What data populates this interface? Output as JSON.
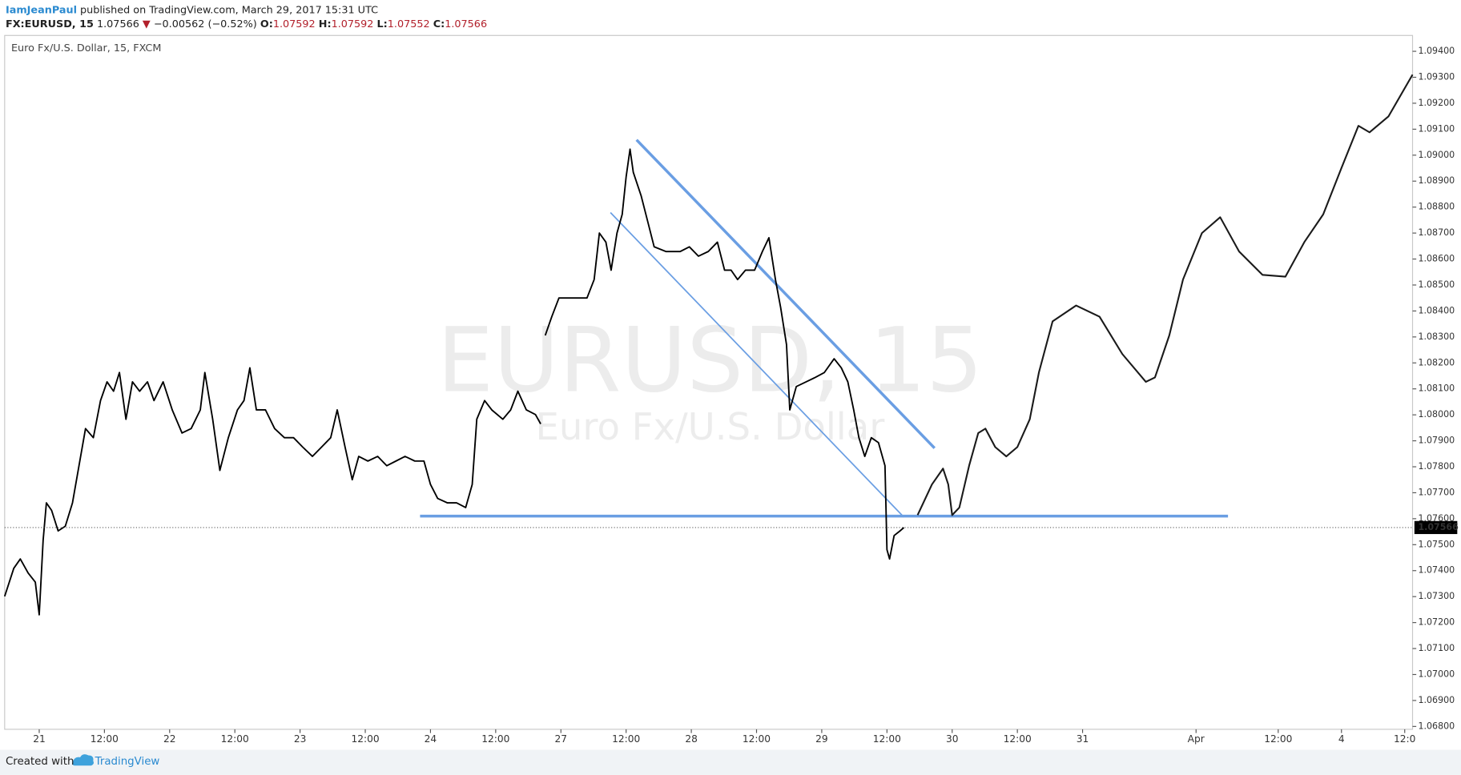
{
  "header": {
    "author": "IamJeanPaul",
    "published": "published on TradingView.com, March 29, 2017 15:31 UTC",
    "symbol": "FX:EURUSD, 15",
    "price": "1.07566",
    "arrow": "▼",
    "change": "−0.00562 (−0.52%)",
    "open_label": "O:",
    "open": "1.07592",
    "high_label": "H:",
    "high": "1.07592",
    "low_label": "L:",
    "low": "1.07552",
    "close_label": "C:",
    "close": "1.07566"
  },
  "footer": {
    "created": "Created with",
    "brand": "TradingView"
  },
  "chart_data": {
    "type": "line",
    "title": "Euro Fx/U.S. Dollar, 15, FXCM",
    "watermark": "EURUSD, 15",
    "watermark_subtitle": "Euro Fx/U.S. Dollar",
    "xlim": [
      -0.53,
      21.06
    ],
    "ylim": [
      1.06789,
      1.09461
    ],
    "xticks": [
      {
        "value": 0,
        "label": "21"
      },
      {
        "value": 1,
        "label": "12:00"
      },
      {
        "value": 2,
        "label": "22"
      },
      {
        "value": 3,
        "label": "12:00"
      },
      {
        "value": 4,
        "label": "23"
      },
      {
        "value": 5,
        "label": "12:00"
      },
      {
        "value": 6,
        "label": "24"
      },
      {
        "value": 7,
        "label": "12:00"
      },
      {
        "value": 8,
        "label": "27"
      },
      {
        "value": 9,
        "label": "12:00"
      },
      {
        "value": 10,
        "label": "28"
      },
      {
        "value": 11,
        "label": "12:00"
      },
      {
        "value": 12,
        "label": "29"
      },
      {
        "value": 13,
        "label": "12:00"
      },
      {
        "value": 14,
        "label": "30"
      },
      {
        "value": 15,
        "label": "12:00"
      },
      {
        "value": 16,
        "label": "31"
      },
      {
        "value": 17.74,
        "label": "Apr"
      },
      {
        "value": 19,
        "label": "12:00"
      },
      {
        "value": 19.97,
        "label": "4"
      },
      {
        "value": 20.94,
        "label": "12:0"
      }
    ],
    "yticks": [
      {
        "value": 1.094,
        "label": "1.09400"
      },
      {
        "value": 1.093,
        "label": "1.09300"
      },
      {
        "value": 1.092,
        "label": "1.09200"
      },
      {
        "value": 1.091,
        "label": "1.09100"
      },
      {
        "value": 1.09,
        "label": "1.09000"
      },
      {
        "value": 1.089,
        "label": "1.08900"
      },
      {
        "value": 1.088,
        "label": "1.08800"
      },
      {
        "value": 1.087,
        "label": "1.08700"
      },
      {
        "value": 1.086,
        "label": "1.08600"
      },
      {
        "value": 1.085,
        "label": "1.08500"
      },
      {
        "value": 1.084,
        "label": "1.08400"
      },
      {
        "value": 1.083,
        "label": "1.08300"
      },
      {
        "value": 1.082,
        "label": "1.08200"
      },
      {
        "value": 1.081,
        "label": "1.08100"
      },
      {
        "value": 1.08,
        "label": "1.08000"
      },
      {
        "value": 1.079,
        "label": "1.07900"
      },
      {
        "value": 1.078,
        "label": "1.07800"
      },
      {
        "value": 1.077,
        "label": "1.07700"
      },
      {
        "value": 1.076,
        "label": "1.07600"
      },
      {
        "value": 1.075,
        "label": "1.07500"
      },
      {
        "value": 1.074,
        "label": "1.07400"
      },
      {
        "value": 1.073,
        "label": "1.07300"
      },
      {
        "value": 1.072,
        "label": "1.07200"
      },
      {
        "value": 1.071,
        "label": "1.07100"
      },
      {
        "value": 1.07,
        "label": "1.07000"
      },
      {
        "value": 1.069,
        "label": "1.06900"
      },
      {
        "value": 1.068,
        "label": "1.06800"
      }
    ],
    "last_price": 1.07566,
    "series": [
      {
        "color": "#000000",
        "x": [
          -0.53,
          -0.39,
          -0.29,
          -0.17,
          -0.06,
          0,
          0.06,
          0.11,
          0.19,
          0.29,
          0.4,
          0.51,
          0.61,
          0.71,
          0.83,
          0.94,
          1.04,
          1.14,
          1.23,
          1.33,
          1.43,
          1.54,
          1.66,
          1.76,
          1.9,
          2.04,
          2.19,
          2.33,
          2.47,
          2.54,
          2.66,
          2.77,
          2.9,
          3.04,
          3.14,
          3.23,
          3.33,
          3.47,
          3.61,
          3.76,
          3.9,
          4.04,
          4.19,
          4.33,
          4.47,
          4.57,
          4.69,
          4.8,
          4.9,
          5.04,
          5.19,
          5.33,
          5.47,
          5.61,
          5.76,
          5.9,
          6,
          6.11,
          6.26,
          6.4,
          6.54,
          6.64,
          6.71,
          6.83,
          6.94,
          7.11,
          7.23,
          7.34,
          7.47,
          7.61,
          7.69,
          7.74,
          7.76,
          7.86,
          7.97,
          8.19,
          8.4,
          8.51,
          8.59,
          8.69,
          8.77,
          8.86,
          8.94,
          9,
          9.06,
          9.11,
          9.23,
          9.34,
          9.43,
          9.61,
          9.83,
          9.97,
          10.11,
          10.26,
          10.4,
          10.51,
          10.61,
          10.71,
          10.83,
          10.97,
          11.09,
          11.19,
          11.29,
          11.37,
          11.46,
          11.51,
          11.61,
          11.76,
          11.9,
          12.04,
          12.19,
          12.3,
          12.4,
          12.49,
          12.57,
          12.66,
          12.76,
          12.87,
          12.97,
          13,
          13.04,
          13.11,
          13.2,
          13.26
        ],
        "values": [
          1.07301,
          1.07409,
          1.07445,
          1.07391,
          1.07356,
          1.0723,
          1.07517,
          1.07661,
          1.07632,
          1.07553,
          1.07571,
          1.07661,
          1.07804,
          1.07947,
          1.07912,
          1.08055,
          1.08127,
          1.08091,
          1.08163,
          1.07983,
          1.08127,
          1.08091,
          1.08127,
          1.08055,
          1.08127,
          1.08019,
          1.0793,
          1.07947,
          1.08019,
          1.08163,
          1.07983,
          1.07786,
          1.07912,
          1.08019,
          1.08055,
          1.08181,
          1.08019,
          1.08019,
          1.07947,
          1.07912,
          1.07912,
          1.07876,
          1.0784,
          1.07876,
          1.07912,
          1.08019,
          1.07876,
          1.0775,
          1.0784,
          1.07822,
          1.0784,
          1.07804,
          1.07822,
          1.0784,
          1.07822,
          1.07822,
          1.07732,
          1.07678,
          1.07661,
          1.07661,
          1.07643,
          1.07732,
          1.07983,
          1.08055,
          1.08019,
          1.07983,
          1.08019,
          1.08091,
          1.08019,
          1.08001,
          1.07965,
          null,
          1.08306,
          1.08378,
          1.0845,
          1.0845,
          1.0845,
          1.08521,
          1.087,
          1.08665,
          1.08557,
          1.087,
          1.08772,
          1.08916,
          1.09023,
          1.08934,
          1.08844,
          1.08736,
          1.08647,
          1.08629,
          1.08629,
          1.08647,
          1.08611,
          1.08629,
          1.08665,
          1.08557,
          1.08557,
          1.08521,
          1.08557,
          1.08557,
          1.08629,
          1.08682,
          1.08521,
          1.08413,
          1.0827,
          1.08019,
          1.08109,
          1.08127,
          1.08144,
          1.08163,
          1.08216,
          1.08181,
          1.08127,
          1.08019,
          1.07912,
          1.0784,
          1.07912,
          1.07893,
          1.07804,
          1.07481,
          1.07445,
          1.07535,
          1.07553,
          1.07566
        ]
      }
    ],
    "trend_lines": [
      {
        "color": "#6a9ee3",
        "x": [
          9.16,
          13.73
        ],
        "y": [
          1.09059,
          1.07872
        ]
      },
      {
        "color": "#6a9ee3",
        "x": [
          8.76,
          13.26
        ],
        "y": [
          1.08779,
          1.07606
        ]
      },
      {
        "color": "#6a9ee3",
        "x": [
          5.84,
          18.23
        ],
        "y": [
          1.0761,
          1.0761
        ]
      }
    ],
    "projection": {
      "color": "#1a1a1a",
      "x": [
        13.47,
        13.69,
        13.86,
        13.94,
        14,
        14.11,
        14.26,
        14.4,
        14.51,
        14.66,
        14.83,
        15,
        15.19,
        15.33,
        15.54,
        15.9,
        16.26,
        16.61,
        16.97,
        17.11,
        17.33,
        17.54,
        17.83,
        18.11,
        18.4,
        18.76,
        19.11,
        19.4,
        19.69,
        19.97,
        20.23,
        20.4,
        20.69,
        21.06
      ],
      "y": [
        1.07614,
        1.07732,
        1.07793,
        1.07732,
        1.07614,
        1.07643,
        1.07804,
        1.0793,
        1.07947,
        1.07876,
        1.0784,
        1.07876,
        1.07983,
        1.08163,
        1.0836,
        1.08421,
        1.08378,
        1.08234,
        1.08127,
        1.08144,
        1.08306,
        1.08521,
        1.087,
        1.08761,
        1.08629,
        1.08539,
        1.08532,
        1.08665,
        1.08772,
        1.08951,
        1.09113,
        1.09088,
        1.09149,
        1.0931
      ]
    }
  }
}
